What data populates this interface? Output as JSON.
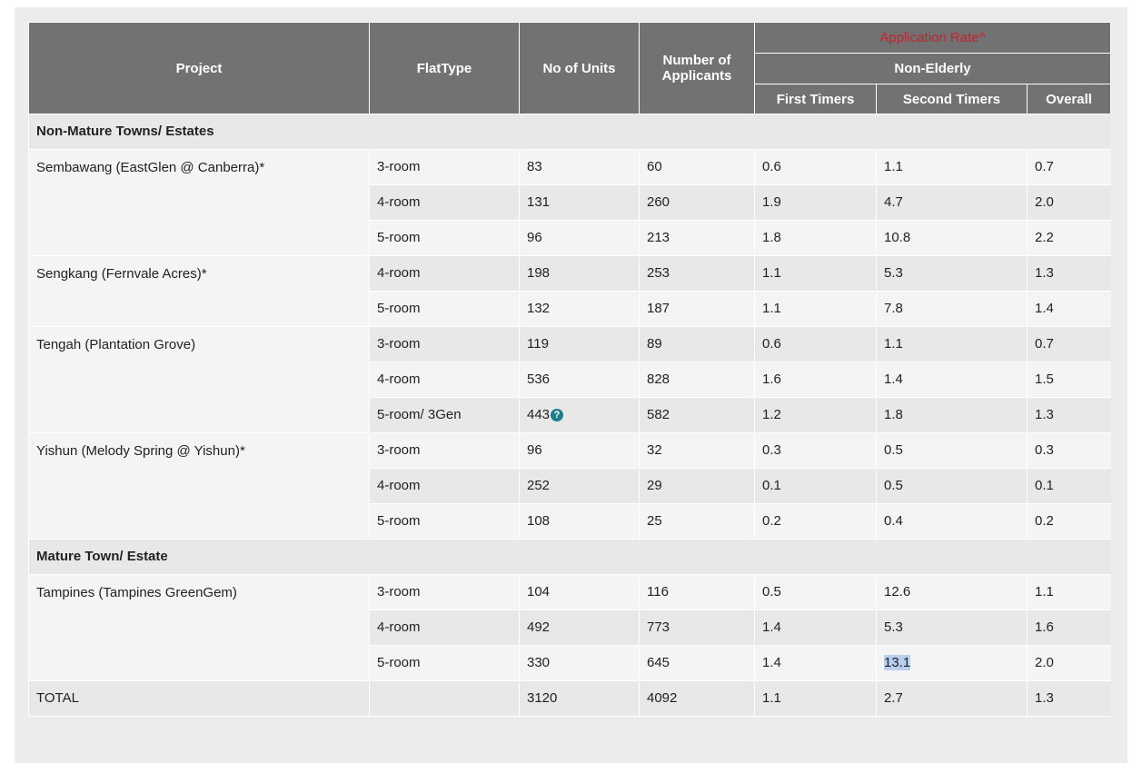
{
  "headers": {
    "project": "Project",
    "flat_type": "FlatType",
    "no_of_units": "No of Units",
    "applicants_line1": "Number of",
    "applicants_line2": "Applicants",
    "application_rate": "Application Rate^",
    "non_elderly": "Non-Elderly",
    "first_timers": "First Timers",
    "second_timers": "Second Timers",
    "overall": "Overall"
  },
  "sections": [
    {
      "title": "Non-Mature Towns/ Estates",
      "projects": [
        {
          "name": "Sembawang (EastGlen @ Canberra)*",
          "rows": [
            {
              "flat_type": "3-room",
              "units": "83",
              "applicants": "60",
              "first": "0.6",
              "second": "1.1",
              "overall": "0.7"
            },
            {
              "flat_type": "4-room",
              "units": "131",
              "applicants": "260",
              "first": "1.9",
              "second": "4.7",
              "overall": "2.0"
            },
            {
              "flat_type": "5-room",
              "units": "96",
              "applicants": "213",
              "first": "1.8",
              "second": "10.8",
              "overall": "2.2"
            }
          ]
        },
        {
          "name": "Sengkang (Fernvale Acres)*",
          "rows": [
            {
              "flat_type": "4-room",
              "units": "198",
              "applicants": "253",
              "first": "1.1",
              "second": "5.3",
              "overall": "1.3"
            },
            {
              "flat_type": "5-room",
              "units": "132",
              "applicants": "187",
              "first": "1.1",
              "second": "7.8",
              "overall": "1.4"
            }
          ]
        },
        {
          "name": "Tengah (Plantation Grove)",
          "rows": [
            {
              "flat_type": "3-room",
              "units": "119",
              "applicants": "89",
              "first": "0.6",
              "second": "1.1",
              "overall": "0.7"
            },
            {
              "flat_type": "4-room",
              "units": "536",
              "applicants": "828",
              "first": "1.6",
              "second": "1.4",
              "overall": "1.5"
            },
            {
              "flat_type": "5-room/ 3Gen",
              "units": "443",
              "applicants": "582",
              "first": "1.2",
              "second": "1.8",
              "overall": "1.3",
              "help_icon": "question-icon",
              "help_glyph": "?"
            }
          ]
        },
        {
          "name": "Yishun (Melody Spring @ Yishun)*",
          "rows": [
            {
              "flat_type": "3-room",
              "units": "96",
              "applicants": "32",
              "first": "0.3",
              "second": "0.5",
              "overall": "0.3"
            },
            {
              "flat_type": "4-room",
              "units": "252",
              "applicants": "29",
              "first": "0.1",
              "second": "0.5",
              "overall": "0.1"
            },
            {
              "flat_type": "5-room",
              "units": "108",
              "applicants": "25",
              "first": "0.2",
              "second": "0.4",
              "overall": "0.2"
            }
          ]
        }
      ]
    },
    {
      "title": "Mature Town/ Estate",
      "projects": [
        {
          "name": "Tampines (Tampines GreenGem)",
          "rows": [
            {
              "flat_type": "3-room",
              "units": "104",
              "applicants": "116",
              "first": "0.5",
              "second": "12.6",
              "overall": "1.1"
            },
            {
              "flat_type": "4-room",
              "units": "492",
              "applicants": "773",
              "first": "1.4",
              "second": "5.3",
              "overall": "1.6"
            },
            {
              "flat_type": "5-room",
              "units": "330",
              "applicants": "645",
              "first": "1.4",
              "second": "13.1",
              "overall": "2.0",
              "selected": true
            }
          ]
        }
      ]
    }
  ],
  "total": {
    "label": "TOTAL",
    "units": "3120",
    "applicants": "4092",
    "first": "1.1",
    "second": "2.7",
    "overall": "1.3"
  },
  "colors": {
    "header_bg": "#727272",
    "rate_text": "#c0272d",
    "row_alt": "#e8e8e8",
    "row_plain": "#f4f4f4",
    "icon": "#1e7f8a",
    "selection": "#b8cff0"
  }
}
